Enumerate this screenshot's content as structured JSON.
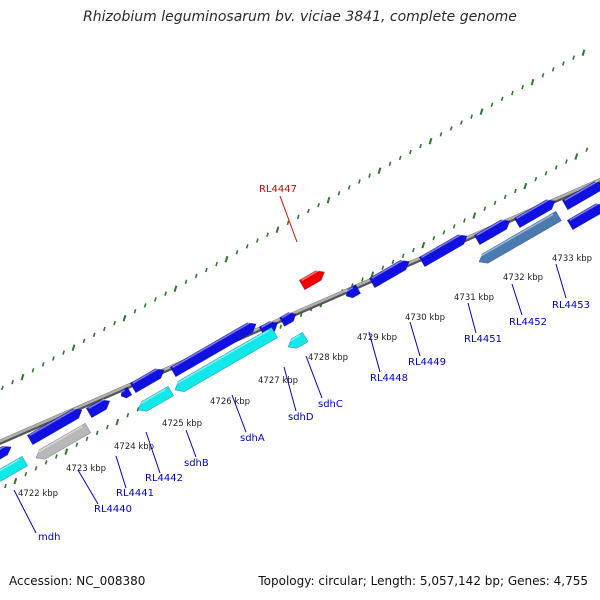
{
  "title": "Rhizobium leguminosarum bv. viciae 3841, complete genome",
  "accession": "Accession: NC_008380",
  "info": "Topology: circular; Length: 5,057,142 bp; Genes: 4,755",
  "colors": {
    "forward_gene": "#1010e0",
    "reverse_gene": "#10e8ea",
    "pseudo_gene": "#b8b8b8",
    "highlight_gene": "#4a7ab0",
    "selected_gene": "#ee0000",
    "backbone": "#808080",
    "tick": "#2a7a2a",
    "label": "#0000cc"
  },
  "kbp_labels": [
    "4722 kbp",
    "4723 kbp",
    "4724 kbp",
    "4725 kbp",
    "4726 kbp",
    "4727 kbp",
    "4728 kbp",
    "4729 kbp",
    "4730 kbp",
    "4731 kbp",
    "4732 kbp",
    "4733 kbp"
  ],
  "gene_labels": [
    "mdh",
    "RL4440",
    "RL4441",
    "RL4442",
    "sdhB",
    "sdhA",
    "sdhD",
    "sdhC",
    "RL4447",
    "RL4448",
    "RL4449",
    "RL4451",
    "RL4452",
    "RL4453"
  ]
}
